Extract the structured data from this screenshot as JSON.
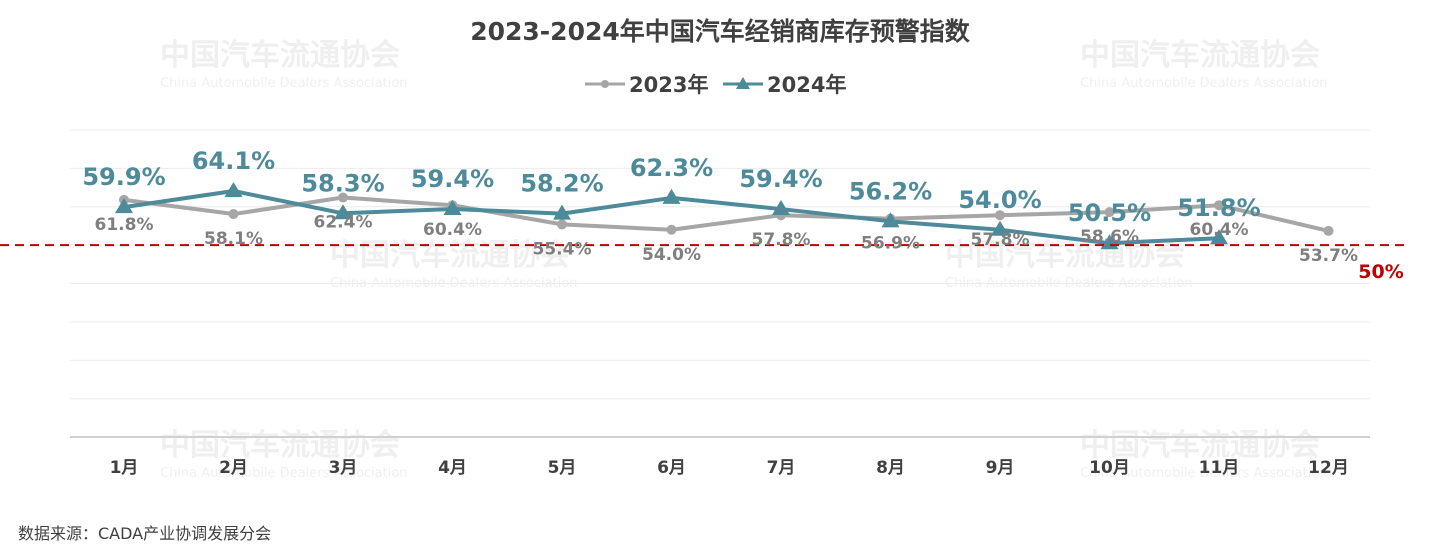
{
  "chart_data": {
    "type": "line",
    "title": "2023-2024年中国汽车经销商库存预警指数",
    "categories": [
      "1月",
      "2月",
      "3月",
      "4月",
      "5月",
      "6月",
      "7月",
      "8月",
      "9月",
      "10月",
      "11月",
      "12月"
    ],
    "series": [
      {
        "name": "2023年",
        "color": "#a6a6a6",
        "values": [
          61.8,
          58.1,
          62.4,
          60.4,
          55.4,
          54.0,
          57.8,
          56.9,
          57.8,
          58.6,
          60.4,
          53.7
        ],
        "labels": [
          "61.8%",
          "58.1%",
          "62.4%",
          "60.4%",
          "55.4%",
          "54.0%",
          "57.8%",
          "56.9%",
          "57.8%",
          "58.6%",
          "60.4%",
          "53.7%"
        ]
      },
      {
        "name": "2024年",
        "color": "#4d8a9a",
        "values": [
          59.9,
          64.1,
          58.3,
          59.4,
          58.2,
          62.3,
          59.4,
          56.2,
          54.0,
          50.5,
          51.8,
          null
        ],
        "labels": [
          "59.9%",
          "64.1%",
          "58.3%",
          "59.4%",
          "58.2%",
          "62.3%",
          "59.4%",
          "56.2%",
          "54.0%",
          "50.5%",
          "51.8%",
          ""
        ]
      }
    ],
    "reference_line": {
      "value": 50,
      "label": "50%",
      "color": "#c00000"
    },
    "ylim": [
      0,
      80
    ],
    "grid": true,
    "legend_position": "top-center"
  },
  "watermark": {
    "cn": "中国汽车流通协会",
    "en": "China Automobile Dealers Association"
  },
  "source": "数据来源：CADA产业协调发展分会"
}
